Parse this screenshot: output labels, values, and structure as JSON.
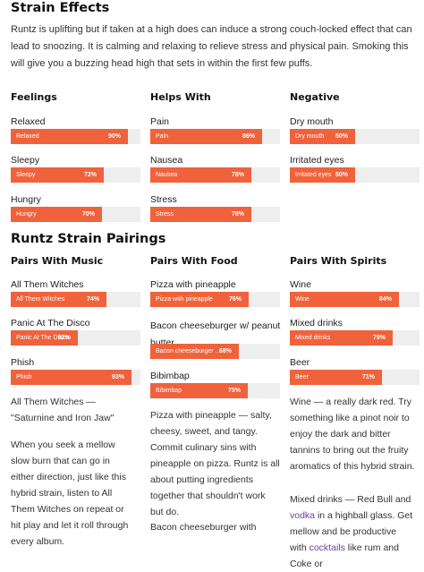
{
  "effects": {
    "title": "Strain Effects",
    "intro": "Runtz is uplifting but if taken at a high does can induce a strong couch-locked effect that can lead to snoozing. It is calming and relaxing to relieve stress and physical pain. Smoking this will give you a buzzing head high that sets in within the first few puffs.",
    "columns": [
      {
        "title": "Feelings",
        "items": [
          {
            "label": "Relaxed",
            "bar_label": "Relaxed",
            "percent_text": "90%",
            "value": 90
          },
          {
            "label": "Sleepy",
            "bar_label": "Sleepy",
            "percent_text": "72%",
            "value": 72
          },
          {
            "label": "Hungry",
            "bar_label": "Hungry",
            "percent_text": "70%",
            "value": 70
          }
        ]
      },
      {
        "title": "Helps With",
        "items": [
          {
            "label": "Pain",
            "bar_label": "Pain",
            "percent_text": "86%",
            "value": 86
          },
          {
            "label": "Nausea",
            "bar_label": "Nausea",
            "percent_text": "78%",
            "value": 78
          },
          {
            "label": "Stress",
            "bar_label": "Stress",
            "percent_text": "78%",
            "value": 78
          }
        ]
      },
      {
        "title": "Negative",
        "items": [
          {
            "label": "Dry mouth",
            "bar_label": "Dry mouth",
            "percent_text": "50%",
            "value": 50
          },
          {
            "label": "Irritated eyes",
            "bar_label": "Irritated eyes",
            "percent_text": "50%",
            "value": 50
          }
        ]
      }
    ]
  },
  "pairings": {
    "title": "Runtz Strain Pairings",
    "columns": [
      {
        "title": "Pairs With Music",
        "items": [
          {
            "label": "All Them Witches",
            "bar_label": "All Them Witches",
            "percent_text": "74%",
            "value": 74
          },
          {
            "label": "Panic At The Disco",
            "bar_label": "Panic At The Disco",
            "percent_text": "52%",
            "value": 52
          },
          {
            "label": "Phish",
            "bar_label": "Phish",
            "percent_text": "93%",
            "value": 93
          }
        ]
      },
      {
        "title": "Pairs With Food",
        "items": [
          {
            "label": "Pizza with pineapple",
            "bar_label": "Pizza with pineapple",
            "percent_text": "76%",
            "value": 76
          },
          {
            "label": "Bacon cheeseburger w/ peanut butter",
            "bar_label": "Bacon cheeseburger ...",
            "percent_text": "68%",
            "value": 68
          },
          {
            "label": "Bibimbap",
            "bar_label": "Bibimbap",
            "percent_text": "75%",
            "value": 75
          }
        ]
      },
      {
        "title": "Pairs With Spirits",
        "items": [
          {
            "label": "Wine",
            "bar_label": "Wine",
            "percent_text": "84%",
            "value": 84
          },
          {
            "label": "Mixed drinks",
            "bar_label": "Mixed drinks",
            "percent_text": "79%",
            "value": 79
          },
          {
            "label": "Beer",
            "bar_label": "Beer",
            "percent_text": "71%",
            "value": 71
          }
        ]
      }
    ],
    "descriptions": {
      "music": [
        "All Them Witches — \"Saturnine and Iron Jaw\"",
        "When you seek a mellow slow burn that can go in either direction, just like this hybrid strain, listen to All Them Witches on repeat or hit play and let it roll through every album."
      ],
      "food": [
        "Pizza with pineapple — salty, cheesy, sweet, and tangy. Commit culinary sins with pineapple on pizza. Runtz is all about putting ingredients together that shouldn't work but do.",
        "Bacon cheeseburger with"
      ],
      "spirits": {
        "p1": "Wine — a really dark red. Try something like a pinot noir to enjoy the dark and bitter tannins to bring out the fruity aromatics of this hybrid strain.",
        "p2_a": "Mixed drinks — Red Bull and ",
        "p2_link1": "vodka",
        "p2_b": " in a highball glass. Get mellow and be productive with ",
        "p2_link2": "cocktails",
        "p2_c": " like rum and Coke or"
      }
    }
  },
  "colors": {
    "accent": "#f0623c",
    "track": "#eeeeee",
    "link": "#6b3fa0"
  }
}
